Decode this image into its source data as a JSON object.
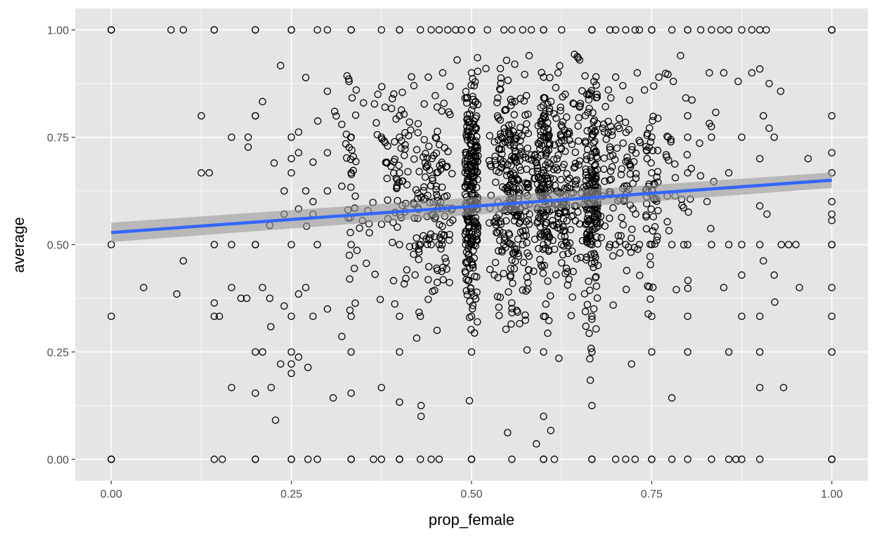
{
  "chart_data": {
    "type": "scatter",
    "xlabel": "prop_female",
    "ylabel": "average",
    "xlim": [
      -0.05,
      1.05
    ],
    "ylim": [
      -0.05,
      1.05
    ],
    "x_ticks": [
      0,
      0.25,
      0.5,
      0.75,
      1
    ],
    "y_ticks": [
      0,
      0.25,
      0.5,
      0.75,
      1
    ],
    "x_tick_labels": [
      "0.00",
      "0.25",
      "0.50",
      "0.75",
      "1.00"
    ],
    "y_tick_labels": [
      "0.00",
      "0.25",
      "0.50",
      "0.75",
      "1.00"
    ],
    "grid": true,
    "background_color": "#e5e5e5",
    "grid_color": "#ffffff",
    "point_color": "#000000",
    "point_shape": "open-circle",
    "fit_line": {
      "method": "lm",
      "color": "#3366ff",
      "ribbon_color": "#999999",
      "x": [
        0,
        1
      ],
      "y": [
        0.528,
        0.65
      ],
      "ci_low": [
        0.506,
        0.632
      ],
      "ci_high": [
        0.551,
        0.668
      ]
    },
    "points": [
      [
        0,
        0
      ],
      [
        0,
        0
      ],
      [
        0,
        0
      ],
      [
        0,
        0.333
      ],
      [
        0,
        0.5
      ],
      [
        0,
        1
      ],
      [
        0,
        1
      ],
      [
        0,
        1
      ],
      [
        0.083,
        1
      ],
      [
        0.1,
        1
      ],
      [
        0.143,
        1
      ],
      [
        0.143,
        1
      ],
      [
        0.2,
        1
      ],
      [
        0.2,
        1
      ],
      [
        0.25,
        1
      ],
      [
        0.25,
        1
      ],
      [
        0.286,
        1
      ],
      [
        0.3,
        1
      ],
      [
        0.333,
        1
      ],
      [
        0.333,
        1
      ],
      [
        0.375,
        1
      ],
      [
        0.4,
        1
      ],
      [
        0.4,
        1
      ],
      [
        0.429,
        1
      ],
      [
        0.444,
        1
      ],
      [
        0.455,
        1
      ],
      [
        0.467,
        1
      ],
      [
        0.478,
        1
      ],
      [
        0.486,
        1
      ],
      [
        0.5,
        1
      ],
      [
        0.5,
        1
      ],
      [
        0.5,
        1
      ],
      [
        0.522,
        1
      ],
      [
        0.545,
        1
      ],
      [
        0.556,
        1
      ],
      [
        0.571,
        1
      ],
      [
        0.583,
        1
      ],
      [
        0.6,
        1
      ],
      [
        0.6,
        1
      ],
      [
        0.625,
        1
      ],
      [
        0.667,
        1
      ],
      [
        0.667,
        1
      ],
      [
        0.667,
        1
      ],
      [
        0.692,
        1
      ],
      [
        0.7,
        1
      ],
      [
        0.714,
        1
      ],
      [
        0.727,
        1
      ],
      [
        0.733,
        1
      ],
      [
        0.75,
        1
      ],
      [
        0.75,
        1
      ],
      [
        0.778,
        1
      ],
      [
        0.8,
        1
      ],
      [
        0.8,
        1
      ],
      [
        0.818,
        1
      ],
      [
        0.833,
        1
      ],
      [
        0.846,
        1
      ],
      [
        0.857,
        1
      ],
      [
        0.875,
        1
      ],
      [
        0.889,
        1
      ],
      [
        0.9,
        1
      ],
      [
        0.909,
        1
      ],
      [
        1,
        1
      ],
      [
        1,
        1
      ],
      [
        1,
        1
      ],
      [
        0.143,
        0
      ],
      [
        0.154,
        0
      ],
      [
        0.2,
        0
      ],
      [
        0.2,
        0
      ],
      [
        0.25,
        0
      ],
      [
        0.25,
        0
      ],
      [
        0.273,
        0
      ],
      [
        0.286,
        0
      ],
      [
        0.333,
        0
      ],
      [
        0.333,
        0
      ],
      [
        0.364,
        0
      ],
      [
        0.375,
        0
      ],
      [
        0.4,
        0
      ],
      [
        0.4,
        0
      ],
      [
        0.429,
        0
      ],
      [
        0.444,
        0
      ],
      [
        0.455,
        0
      ],
      [
        0.5,
        0
      ],
      [
        0.5,
        0
      ],
      [
        0.5,
        0
      ],
      [
        0.556,
        0
      ],
      [
        0.6,
        0
      ],
      [
        0.6,
        0
      ],
      [
        0.615,
        0
      ],
      [
        0.667,
        0
      ],
      [
        0.667,
        0
      ],
      [
        0.7,
        0
      ],
      [
        0.714,
        0
      ],
      [
        0.727,
        0
      ],
      [
        0.75,
        0
      ],
      [
        0.75,
        0
      ],
      [
        0.778,
        0
      ],
      [
        0.8,
        0
      ],
      [
        0.833,
        0
      ],
      [
        0.857,
        0
      ],
      [
        0.867,
        0
      ],
      [
        0.875,
        0
      ],
      [
        0.9,
        0
      ],
      [
        1,
        0
      ],
      [
        1,
        0
      ],
      [
        1,
        0
      ],
      [
        0.143,
        0.333
      ],
      [
        0.25,
        0.333
      ],
      [
        0.333,
        0.333
      ],
      [
        0.4,
        0.333
      ],
      [
        0.429,
        0.333
      ],
      [
        0.5,
        0.333
      ],
      [
        0.6,
        0.333
      ],
      [
        0.667,
        0.333
      ],
      [
        0.75,
        0.333
      ],
      [
        0.8,
        0.333
      ],
      [
        0.875,
        0.333
      ],
      [
        0.9,
        0.333
      ],
      [
        1,
        0.333
      ],
      [
        0.143,
        0.5
      ],
      [
        0.167,
        0.5
      ],
      [
        0.2,
        0.5
      ],
      [
        0.25,
        0.5
      ],
      [
        0.286,
        0.5
      ],
      [
        0.333,
        0.5
      ],
      [
        0.4,
        0.5
      ],
      [
        0.429,
        0.5
      ],
      [
        0.444,
        0.5
      ],
      [
        0.455,
        0.5
      ],
      [
        0.5,
        0.5
      ],
      [
        0.5,
        0.5
      ],
      [
        0.545,
        0.5
      ],
      [
        0.556,
        0.5
      ],
      [
        0.571,
        0.5
      ],
      [
        0.6,
        0.5
      ],
      [
        0.625,
        0.5
      ],
      [
        0.667,
        0.5
      ],
      [
        0.692,
        0.5
      ],
      [
        0.7,
        0.5
      ],
      [
        0.714,
        0.5
      ],
      [
        0.733,
        0.5
      ],
      [
        0.75,
        0.5
      ],
      [
        0.778,
        0.5
      ],
      [
        0.8,
        0.5
      ],
      [
        0.833,
        0.5
      ],
      [
        0.857,
        0.5
      ],
      [
        0.875,
        0.5
      ],
      [
        0.9,
        0.5
      ],
      [
        0.94,
        0.5
      ],
      [
        1,
        0.5
      ],
      [
        1,
        0.5
      ],
      [
        0.25,
        0.25
      ],
      [
        0.333,
        0.25
      ],
      [
        0.4,
        0.25
      ],
      [
        0.5,
        0.25
      ],
      [
        0.6,
        0.25
      ],
      [
        0.667,
        0.25
      ],
      [
        0.75,
        0.25
      ],
      [
        0.8,
        0.25
      ],
      [
        0.857,
        0.25
      ],
      [
        0.9,
        0.25
      ],
      [
        1,
        0.25
      ],
      [
        0.25,
        0.667
      ],
      [
        0.333,
        0.667
      ],
      [
        0.4,
        0.667
      ],
      [
        0.5,
        0.667
      ],
      [
        0.6,
        0.667
      ],
      [
        0.667,
        0.667
      ],
      [
        0.75,
        0.667
      ],
      [
        0.8,
        0.667
      ],
      [
        0.857,
        0.667
      ],
      [
        1,
        0.667
      ],
      [
        0.25,
        0.75
      ],
      [
        0.333,
        0.75
      ],
      [
        0.375,
        0.75
      ],
      [
        0.4,
        0.75
      ],
      [
        0.5,
        0.75
      ],
      [
        0.6,
        0.75
      ],
      [
        0.625,
        0.75
      ],
      [
        0.667,
        0.75
      ],
      [
        0.75,
        0.75
      ],
      [
        0.8,
        0.75
      ],
      [
        0.833,
        0.75
      ],
      [
        0.875,
        0.75
      ],
      [
        0.2,
        0.8
      ],
      [
        0.4,
        0.8
      ],
      [
        0.6,
        0.8
      ],
      [
        0.8,
        0.8
      ],
      [
        1,
        0.8
      ],
      [
        1,
        0.714
      ],
      [
        1,
        0.6
      ],
      [
        1,
        0.4
      ],
      [
        1,
        0.556
      ],
      [
        1,
        0.571
      ],
      [
        0.125,
        0.8
      ],
      [
        0.125,
        0.667
      ],
      [
        0.136,
        0.667
      ],
      [
        0.167,
        0.75
      ],
      [
        0.19,
        0.75
      ],
      [
        0.19,
        0.727
      ],
      [
        0.2,
        0.8
      ],
      [
        0.21,
        0.833
      ],
      [
        0.235,
        0.917
      ],
      [
        0.26,
        0.762
      ],
      [
        0.1,
        0.462
      ],
      [
        0.045,
        0.4
      ],
      [
        0.091,
        0.385
      ],
      [
        0.143,
        0.364
      ],
      [
        0.167,
        0.4
      ],
      [
        0.188,
        0.375
      ],
      [
        0.2,
        0.25
      ],
      [
        0.21,
        0.25
      ],
      [
        0.222,
        0.167
      ],
      [
        0.228,
        0.091
      ],
      [
        0.167,
        0.167
      ],
      [
        0.2,
        0.154
      ],
      [
        0.235,
        0.222
      ],
      [
        0.25,
        0.2
      ],
      [
        0.25,
        0.222
      ],
      [
        0.26,
        0.238
      ],
      [
        0.273,
        0.214
      ],
      [
        0.308,
        0.143
      ],
      [
        0.333,
        0.154
      ],
      [
        0.375,
        0.167
      ],
      [
        0.4,
        0.133
      ],
      [
        0.43,
        0.125
      ],
      [
        0.43,
        0.1
      ],
      [
        0.55,
        0.062
      ],
      [
        0.59,
        0.036
      ],
      [
        0.6,
        0.1
      ],
      [
        0.61,
        0.067
      ],
      [
        0.667,
        0.125
      ],
      [
        0.722,
        0.222
      ],
      [
        0.778,
        0.143
      ],
      [
        0.9,
        0.167
      ],
      [
        0.933,
        0.167
      ],
      [
        0.955,
        0.4
      ],
      [
        0.967,
        0.7
      ],
      [
        0.929,
        0.857
      ],
      [
        0.913,
        0.875
      ],
      [
        0.9,
        0.909
      ],
      [
        0.889,
        0.9
      ],
      [
        0.905,
        0.8
      ],
      [
        0.913,
        0.771
      ],
      [
        0.92,
        0.75
      ],
      [
        0.9,
        0.7
      ],
      [
        0.9,
        0.59
      ],
      [
        0.91,
        0.571
      ],
      [
        0.92,
        0.429
      ],
      [
        0.93,
        0.5
      ],
      [
        0.95,
        0.5
      ],
      [
        0.905,
        0.462
      ],
      [
        0.875,
        0.429
      ],
      [
        0.85,
        0.4
      ],
      [
        0.15,
        0.333
      ],
      [
        0.18,
        0.375
      ],
      [
        0.21,
        0.4
      ],
      [
        0.22,
        0.375
      ],
      [
        0.24,
        0.357
      ],
      [
        0.26,
        0.385
      ],
      [
        0.27,
        0.4
      ],
      [
        0.28,
        0.333
      ],
      [
        0.3,
        0.35
      ],
      [
        0.32,
        0.286
      ],
      [
        0.2,
        0.5
      ],
      [
        0.22,
        0.545
      ],
      [
        0.24,
        0.571
      ],
      [
        0.26,
        0.583
      ],
      [
        0.28,
        0.6
      ],
      [
        0.3,
        0.625
      ],
      [
        0.32,
        0.636
      ],
      [
        0.28,
        0.571
      ],
      [
        0.27,
        0.625
      ],
      [
        0.24,
        0.625
      ],
      [
        0.25,
        0.7
      ],
      [
        0.26,
        0.714
      ],
      [
        0.28,
        0.692
      ],
      [
        0.3,
        0.714
      ],
      [
        0.3,
        0.857
      ],
      [
        0.27,
        0.889
      ],
      [
        0.31,
        0.81
      ],
      [
        0.32,
        0.78
      ],
      [
        0.33,
        0.88
      ],
      [
        0.34,
        0.86
      ],
      [
        0.35,
        0.83
      ],
      [
        0.37,
        0.85
      ],
      [
        0.38,
        0.82
      ],
      [
        0.39,
        0.84
      ],
      [
        0.42,
        0.87
      ],
      [
        0.44,
        0.89
      ],
      [
        0.46,
        0.9
      ],
      [
        0.48,
        0.93
      ],
      [
        0.5,
        0.9
      ],
      [
        0.52,
        0.91
      ],
      [
        0.54,
        0.91
      ],
      [
        0.56,
        0.92
      ],
      [
        0.58,
        0.94
      ],
      [
        0.6,
        0.89
      ],
      [
        0.62,
        0.9
      ],
      [
        0.65,
        0.93
      ],
      [
        0.67,
        0.88
      ],
      [
        0.7,
        0.89
      ],
      [
        0.73,
        0.9
      ],
      [
        0.76,
        0.89
      ],
      [
        0.79,
        0.94
      ],
      [
        0.83,
        0.9
      ],
      [
        0.85,
        0.9
      ],
      [
        0.87,
        0.88
      ],
      [
        0.78,
        0.88
      ],
      [
        0.74,
        0.86
      ],
      [
        0.71,
        0.87
      ],
      [
        0.69,
        0.86
      ],
      [
        0.66,
        0.85
      ],
      [
        0.63,
        0.85
      ]
    ]
  }
}
